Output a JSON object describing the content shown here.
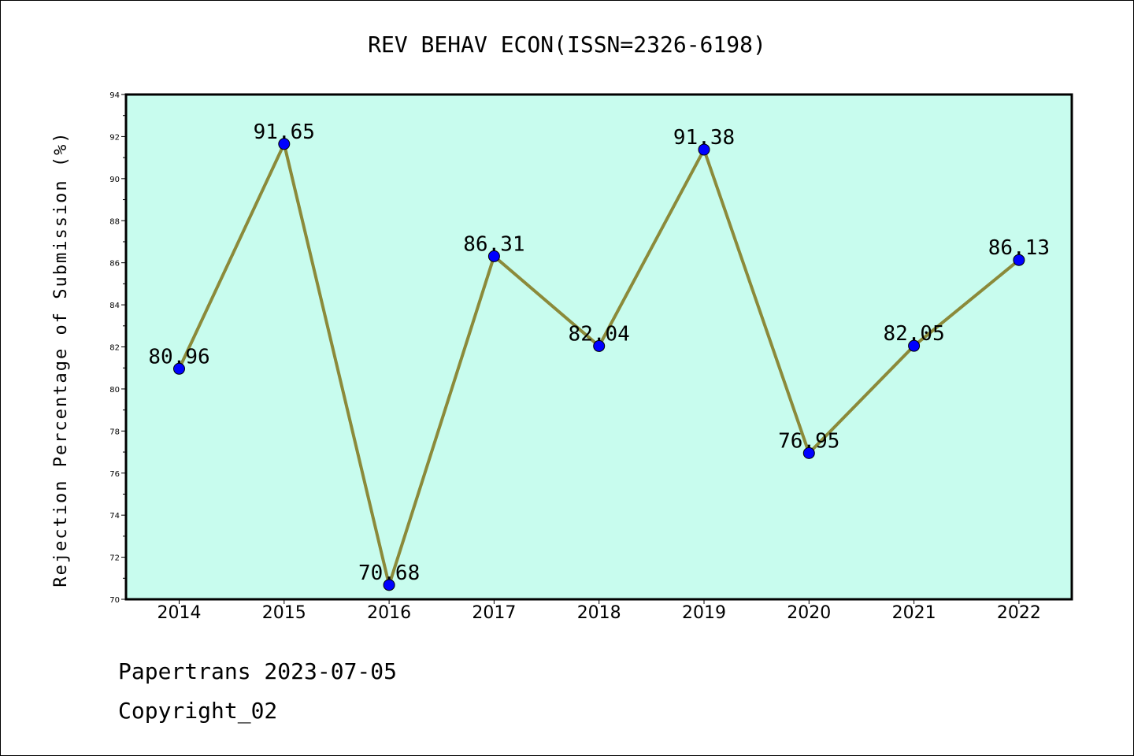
{
  "chart_data": {
    "type": "line",
    "title": "REV BEHAV ECON(ISSN=2326-6198)",
    "ylabel": "Rejection Percentage of Submission (%)",
    "xlabel": "",
    "categories": [
      "2014",
      "2015",
      "2016",
      "2017",
      "2018",
      "2019",
      "2020",
      "2021",
      "2022"
    ],
    "series": [
      {
        "values": [
          80.96,
          91.65,
          70.68,
          86.31,
          82.04,
          91.38,
          76.95,
          82.05,
          86.13
        ],
        "labels": [
          "80.96",
          "91.65",
          "70.68",
          "86.31",
          "82.04",
          "91.38",
          "76.95",
          "82.05",
          "86.13"
        ]
      }
    ],
    "ylim": [
      70,
      94
    ],
    "yticks": [
      70,
      72,
      74,
      76,
      78,
      80,
      82,
      84,
      86,
      88,
      90,
      92,
      94
    ],
    "grid": false,
    "legend": "none",
    "colors": {
      "plot_background": "#c8fcee",
      "line": "#8b8a3a",
      "marker": "#0000ff",
      "axis": "#000000"
    }
  },
  "footer": {
    "line1": "Papertrans 2023-07-05",
    "line2": "Copyright_02"
  }
}
